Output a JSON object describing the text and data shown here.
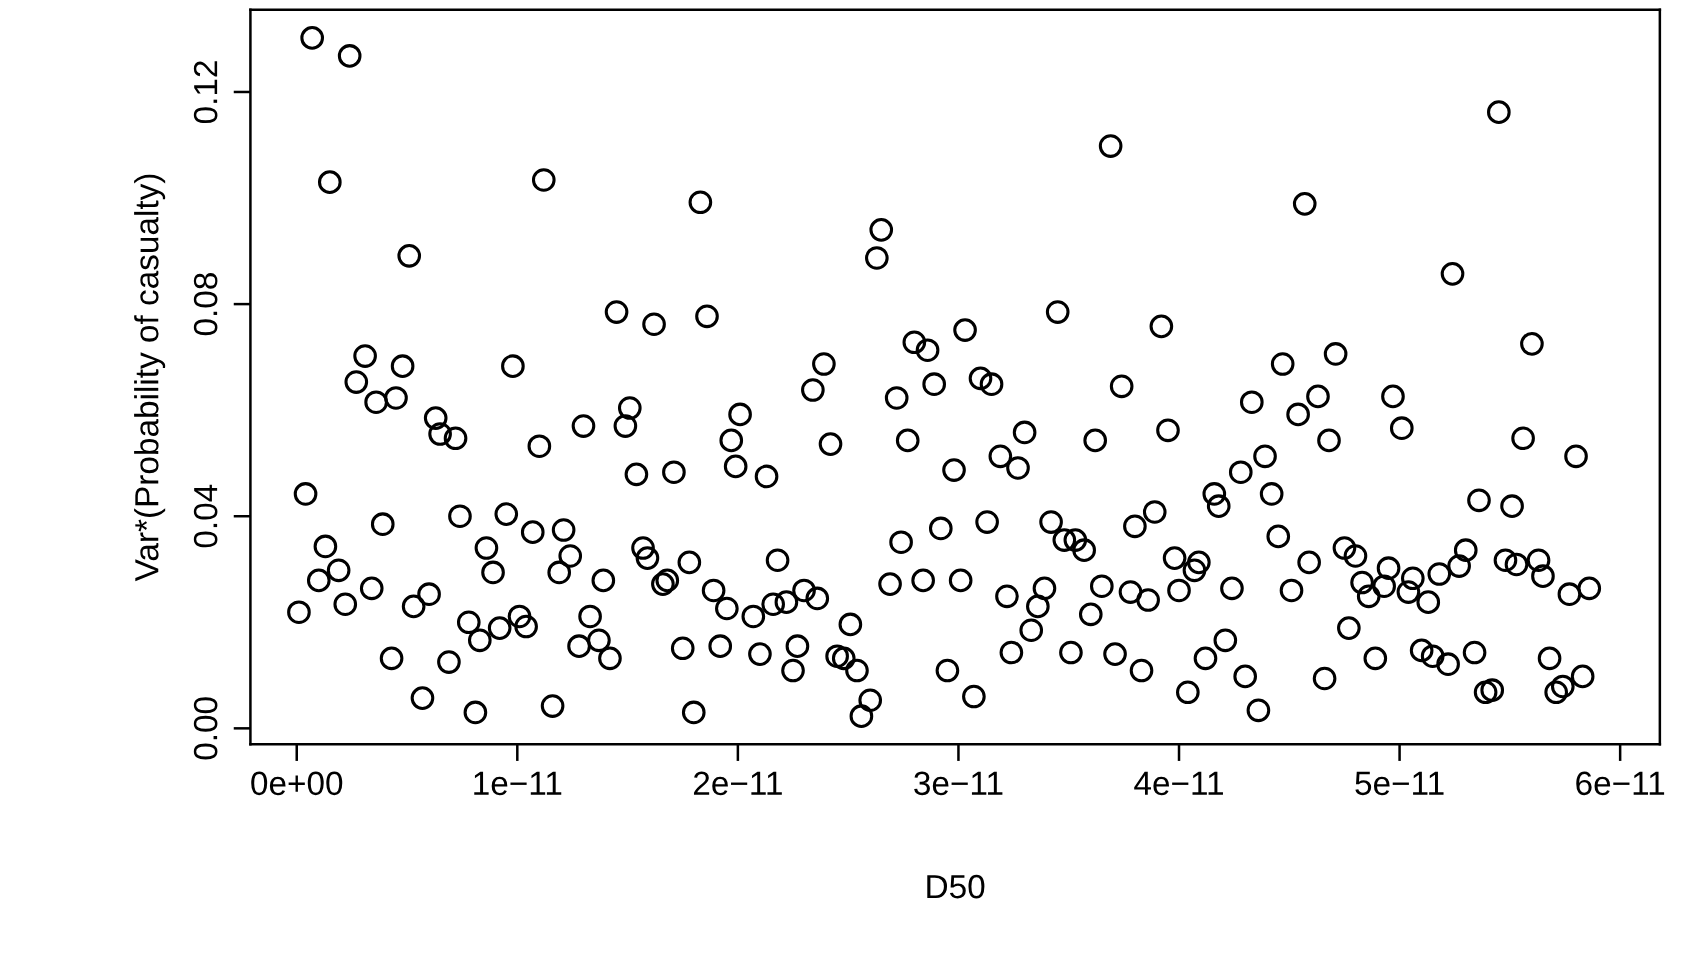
{
  "chart_data": {
    "type": "scatter",
    "xlabel": "D50",
    "ylabel": "Var*(Probability of casualty)",
    "marker": "circle",
    "xlim": [
      -2.1e-12,
      6.18e-11
    ],
    "ylim": [
      -0.003,
      0.1355
    ],
    "xticks": [
      {
        "value": 0,
        "label": "0e+00"
      },
      {
        "value": 1e-11,
        "label": "1e−11"
      },
      {
        "value": 2e-11,
        "label": "2e−11"
      },
      {
        "value": 3e-11,
        "label": "3e−11"
      },
      {
        "value": 4e-11,
        "label": "4e−11"
      },
      {
        "value": 5e-11,
        "label": "5e−11"
      },
      {
        "value": 6e-11,
        "label": "6e−11"
      }
    ],
    "yticks": [
      {
        "value": 0,
        "label": "0.00"
      },
      {
        "value": 0.04,
        "label": "0.04"
      },
      {
        "value": 0.08,
        "label": "0.08"
      },
      {
        "value": 0.12,
        "label": "0.12"
      }
    ],
    "series": [
      {
        "color": "#000000",
        "x": [
          1e-13,
          4e-13,
          7e-13,
          1e-12,
          1.3e-12,
          1.5e-12,
          1.9e-12,
          2.2e-12,
          2.4e-12,
          2.7e-12,
          3.1e-12,
          3.4e-12,
          3.6e-12,
          3.9e-12,
          4.3e-12,
          4.5e-12,
          4.8e-12,
          5.1e-12,
          5.3e-12,
          5.7e-12,
          6e-12,
          6.3e-12,
          6.5e-12,
          6.9e-12,
          7.2e-12,
          7.4e-12,
          7.8e-12,
          8.1e-12,
          8.3e-12,
          8.6e-12,
          8.9e-12,
          9.2e-12,
          9.5e-12,
          9.8e-12,
          1.01e-11,
          1.04e-11,
          1.07e-11,
          1.1e-11,
          1.12e-11,
          1.16e-11,
          1.19e-11,
          1.21e-11,
          1.24e-11,
          1.28e-11,
          1.3e-11,
          1.33e-11,
          1.37e-11,
          1.39e-11,
          1.42e-11,
          1.45e-11,
          1.49e-11,
          1.51e-11,
          1.54e-11,
          1.57e-11,
          1.59e-11,
          1.62e-11,
          1.66e-11,
          1.68e-11,
          1.71e-11,
          1.75e-11,
          1.78e-11,
          1.8e-11,
          1.83e-11,
          1.86e-11,
          1.89e-11,
          1.92e-11,
          1.95e-11,
          1.97e-11,
          1.99e-11,
          2.01e-11,
          2.07e-11,
          2.1e-11,
          2.13e-11,
          2.16e-11,
          2.18e-11,
          2.22e-11,
          2.25e-11,
          2.27e-11,
          2.3e-11,
          2.34e-11,
          2.36e-11,
          2.39e-11,
          2.42e-11,
          2.45e-11,
          2.48e-11,
          2.51e-11,
          2.54e-11,
          2.56e-11,
          2.6e-11,
          2.63e-11,
          2.65e-11,
          2.69e-11,
          2.72e-11,
          2.74e-11,
          2.77e-11,
          2.8e-11,
          2.84e-11,
          2.86e-11,
          2.89e-11,
          2.92e-11,
          2.95e-11,
          2.98e-11,
          3.01e-11,
          3.03e-11,
          3.07e-11,
          3.1e-11,
          3.13e-11,
          3.15e-11,
          3.19e-11,
          3.22e-11,
          3.24e-11,
          3.27e-11,
          3.3e-11,
          3.33e-11,
          3.36e-11,
          3.39e-11,
          3.42e-11,
          3.45e-11,
          3.48e-11,
          3.51e-11,
          3.53e-11,
          3.57e-11,
          3.6e-11,
          3.62e-11,
          3.65e-11,
          3.69e-11,
          3.71e-11,
          3.74e-11,
          3.78e-11,
          3.8e-11,
          3.83e-11,
          3.86e-11,
          3.89e-11,
          3.92e-11,
          3.95e-11,
          3.98e-11,
          4e-11,
          4.04e-11,
          4.07e-11,
          4.09e-11,
          4.12e-11,
          4.16e-11,
          4.18e-11,
          4.21e-11,
          4.24e-11,
          4.28e-11,
          4.3e-11,
          4.33e-11,
          4.36e-11,
          4.39e-11,
          4.42e-11,
          4.45e-11,
          4.47e-11,
          4.51e-11,
          4.54e-11,
          4.57e-11,
          4.59e-11,
          4.63e-11,
          4.66e-11,
          4.68e-11,
          4.71e-11,
          4.75e-11,
          4.77e-11,
          4.8e-11,
          4.83e-11,
          4.86e-11,
          4.89e-11,
          4.93e-11,
          4.95e-11,
          4.97e-11,
          5.01e-11,
          5.04e-11,
          5.06e-11,
          5.1e-11,
          5.13e-11,
          5.15e-11,
          5.18e-11,
          5.22e-11,
          5.24e-11,
          5.27e-11,
          5.3e-11,
          5.34e-11,
          5.36e-11,
          5.39e-11,
          5.42e-11,
          5.45e-11,
          5.48e-11,
          5.51e-11,
          5.53e-11,
          5.56e-11,
          5.6e-11,
          5.63e-11,
          5.65e-11,
          5.68e-11,
          5.71e-11,
          5.74e-11,
          5.77e-11,
          5.8e-11,
          5.83e-11,
          5.86e-11
        ],
        "values": [
          0.0219,
          0.0442,
          0.1302,
          0.0279,
          0.0343,
          0.103,
          0.0298,
          0.0234,
          0.1268,
          0.0653,
          0.0702,
          0.0264,
          0.0615,
          0.0385,
          0.0132,
          0.0623,
          0.0683,
          0.0891,
          0.023,
          0.0057,
          0.0253,
          0.0585,
          0.0555,
          0.0125,
          0.0547,
          0.04,
          0.02,
          0.003,
          0.0166,
          0.034,
          0.0294,
          0.0189,
          0.0404,
          0.0683,
          0.0211,
          0.0192,
          0.037,
          0.0532,
          0.1034,
          0.0042,
          0.0294,
          0.0374,
          0.0325,
          0.0155,
          0.057,
          0.0211,
          0.0166,
          0.0279,
          0.0132,
          0.0785,
          0.057,
          0.0604,
          0.0479,
          0.034,
          0.0321,
          0.0762,
          0.0272,
          0.0279,
          0.0483,
          0.0151,
          0.0313,
          0.003,
          0.0992,
          0.0777,
          0.026,
          0.0155,
          0.0226,
          0.0543,
          0.0494,
          0.0592,
          0.0211,
          0.014,
          0.0475,
          0.0234,
          0.0317,
          0.0238,
          0.0109,
          0.0155,
          0.026,
          0.0638,
          0.0245,
          0.0687,
          0.0536,
          0.0136,
          0.0132,
          0.0196,
          0.0109,
          0.0023,
          0.0053,
          0.0887,
          0.094,
          0.0272,
          0.0623,
          0.0351,
          0.0543,
          0.0728,
          0.0279,
          0.0713,
          0.0649,
          0.0377,
          0.0109,
          0.0487,
          0.0279,
          0.0751,
          0.006,
          0.066,
          0.0389,
          0.0649,
          0.0513,
          0.0249,
          0.0143,
          0.0491,
          0.0558,
          0.0185,
          0.023,
          0.0264,
          0.0389,
          0.0785,
          0.0355,
          0.0143,
          0.0355,
          0.0336,
          0.0215,
          0.0543,
          0.0268,
          0.1098,
          0.014,
          0.0645,
          0.0257,
          0.0381,
          0.0109,
          0.0242,
          0.0408,
          0.0758,
          0.0562,
          0.0321,
          0.026,
          0.0068,
          0.0298,
          0.0313,
          0.0132,
          0.0442,
          0.0419,
          0.0166,
          0.0264,
          0.0483,
          0.0098,
          0.0615,
          0.0034,
          0.0513,
          0.0442,
          0.0362,
          0.0687,
          0.026,
          0.0592,
          0.0989,
          0.0313,
          0.0626,
          0.0094,
          0.0543,
          0.0706,
          0.034,
          0.0189,
          0.0325,
          0.0275,
          0.0249,
          0.0132,
          0.0268,
          0.0302,
          0.0626,
          0.0566,
          0.0257,
          0.0283,
          0.0147,
          0.0238,
          0.0136,
          0.0291,
          0.0121,
          0.0857,
          0.0306,
          0.0336,
          0.0143,
          0.043,
          0.0068,
          0.0072,
          0.1162,
          0.0317,
          0.0419,
          0.0309,
          0.0547,
          0.0725,
          0.0317,
          0.0287,
          0.0132,
          0.0068,
          0.0079,
          0.0253,
          0.0513,
          0.0098,
          0.0264
        ]
      }
    ]
  }
}
